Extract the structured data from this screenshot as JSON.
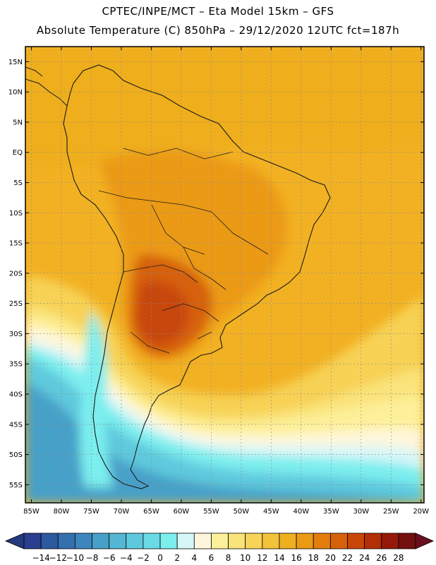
{
  "title": {
    "line1": "CPTEC/INPE/MCT –  Eta Model 15km – GFS",
    "line2": "Absolute Temperature (C) 850hPa – 29/12/2020 12UTC fct=187h"
  },
  "map": {
    "lat_labels": [
      "15N",
      "10N",
      "5N",
      "EQ",
      "5S",
      "10S",
      "15S",
      "20S",
      "25S",
      "30S",
      "35S",
      "40S",
      "45S",
      "50S",
      "55S"
    ],
    "lat_values": [
      15,
      10,
      5,
      0,
      -5,
      -10,
      -15,
      -20,
      -25,
      -30,
      -35,
      -40,
      -45,
      -50,
      -55
    ],
    "lon_labels": [
      "85W",
      "80W",
      "75W",
      "70W",
      "65W",
      "60W",
      "55W",
      "50W",
      "45W",
      "40W",
      "35W",
      "30W",
      "25W",
      "20W"
    ],
    "lon_values": [
      -85,
      -80,
      -75,
      -70,
      -65,
      -60,
      -55,
      -50,
      -45,
      -40,
      -35,
      -30,
      -25,
      -20
    ],
    "lat_range": [
      -58,
      17.5
    ],
    "lon_range": [
      -86,
      -19.5
    ],
    "gridlines": "dotted"
  },
  "colorbar": {
    "labels": [
      "-14",
      "-12",
      "-10",
      "-8",
      "-6",
      "-4",
      "-2",
      "0",
      "2",
      "4",
      "6",
      "8",
      "10",
      "12",
      "14",
      "16",
      "18",
      "20",
      "22",
      "24",
      "26",
      "28"
    ],
    "colors": [
      "#2a3f8f",
      "#2d5a9e",
      "#3470ae",
      "#3c86bd",
      "#47a0c8",
      "#53b6d3",
      "#5ec9dd",
      "#6adbe6",
      "#7ceeee",
      "#d7f6f8",
      "#fef6dc",
      "#fdf09a",
      "#fae37a",
      "#f7d458",
      "#f3c23b",
      "#efb020",
      "#eb9a14",
      "#e27d0e",
      "#d6610a",
      "#c84708",
      "#b33006",
      "#95190a",
      "#741010"
    ],
    "min_color": "#253a7e",
    "max_color": "#6a0f1f"
  }
}
